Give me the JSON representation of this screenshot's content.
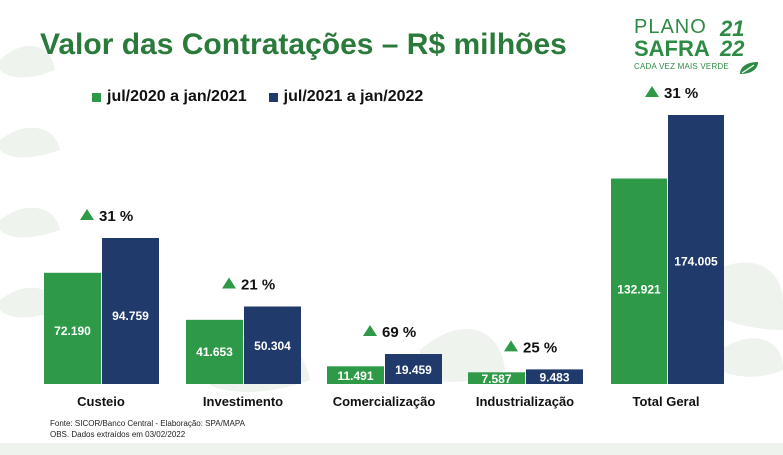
{
  "title": "Valor das Contratações – R$ milhões",
  "logo": {
    "word1": "PLANO",
    "word2": "SAFRA",
    "year1": "21",
    "year2": "22",
    "slogan": "CADA VEZ MAIS VERDE"
  },
  "colors": {
    "green": "#2e9a48",
    "navy": "#203a6b",
    "growth": "#2e9a48"
  },
  "legend": [
    {
      "label": "jul/2020 a jan/2021",
      "color": "#2e9a48"
    },
    {
      "label": "jul/2021 a jan/2022",
      "color": "#203a6b"
    }
  ],
  "chart_data": {
    "type": "bar",
    "categories": [
      "Custeio",
      "Investimento",
      "Comercialização",
      "Industrialização",
      "Total Geral"
    ],
    "series": [
      {
        "name": "jul/2020 a jan/2021",
        "values": [
          72190,
          41653,
          11491,
          7587,
          132921
        ]
      },
      {
        "name": "jul/2021 a jan/2022",
        "values": [
          94759,
          50304,
          19459,
          9483,
          174005
        ]
      }
    ],
    "value_labels": [
      [
        "72.190",
        "41.653",
        "11.491",
        "7.587",
        "132.921"
      ],
      [
        "94.759",
        "50.304",
        "19.459",
        "9.483",
        "174.005"
      ]
    ],
    "growth_labels": [
      "31 %",
      "21 %",
      "69 %",
      "25 %",
      "31 %"
    ],
    "xlabel": "",
    "ylabel": "",
    "grid": false,
    "legend_position": "top-left"
  },
  "footer": {
    "source": "Fonte: SICOR/Banco Central - Elaboração: SPA/MAPA",
    "note": "OBS. Dados extraídos em 03/02/2022"
  }
}
